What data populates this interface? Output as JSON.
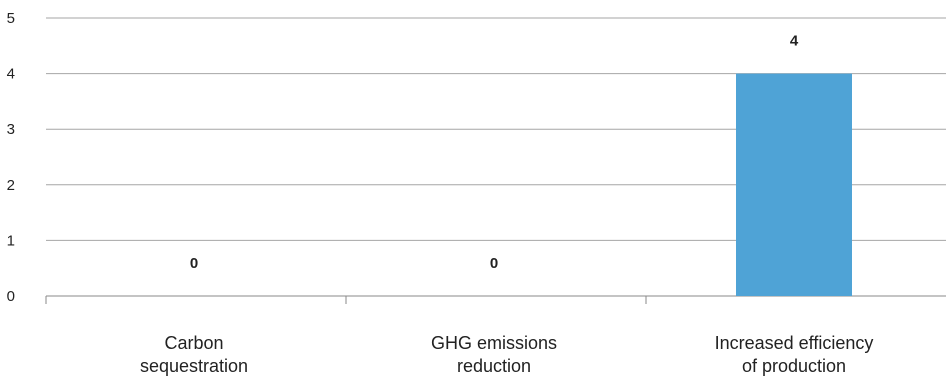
{
  "chart_data": {
    "type": "bar",
    "categories": [
      [
        "Carbon",
        "sequestration"
      ],
      [
        "GHG emissions",
        "reduction"
      ],
      [
        "Increased efficiency",
        "of production"
      ]
    ],
    "values": [
      0,
      0,
      4
    ],
    "data_labels": [
      "0",
      "0",
      "4"
    ],
    "y_ticks": [
      "0",
      "1",
      "2",
      "3",
      "4",
      "5"
    ],
    "ylim": [
      0,
      5
    ],
    "grid": true,
    "title": "",
    "xlabel": "",
    "ylabel": "",
    "colors": {
      "bar": "#4FA3D6",
      "grid": "#A6A6A6",
      "axis": "#888888"
    }
  }
}
